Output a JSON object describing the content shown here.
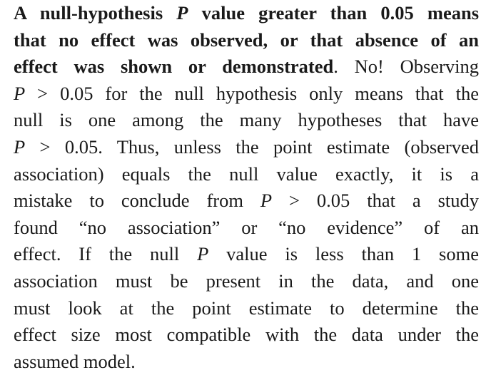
{
  "paragraph": {
    "lines": [
      [
        {
          "t": "A null-hypothesis ",
          "b": true
        },
        {
          "t": "P",
          "b": true,
          "i": true
        },
        {
          "t": " value greater than 0.05 means",
          "b": true
        }
      ],
      [
        {
          "t": "that no effect was observed, or that absence of an",
          "b": true
        }
      ],
      [
        {
          "t": "effect was shown or demonstrated",
          "b": true
        },
        {
          "t": ". No! Observing"
        }
      ],
      [
        {
          "t": "P",
          "i": true
        },
        {
          "t": " > 0.05 for the null hypothesis only means that the"
        }
      ],
      [
        {
          "t": "null is one among the many hypotheses that have"
        }
      ],
      [
        {
          "t": "P",
          "i": true
        },
        {
          "t": " > 0.05. Thus, unless the point estimate (observed"
        }
      ],
      [
        {
          "t": "association) equals the null value exactly, it is a"
        }
      ],
      [
        {
          "t": "mistake to conclude from "
        },
        {
          "t": "P",
          "i": true
        },
        {
          "t": " > 0.05 that a study"
        }
      ],
      [
        {
          "t": "found “no association” or “no evidence” of an"
        }
      ],
      [
        {
          "t": "effect. If the null "
        },
        {
          "t": "P",
          "i": true
        },
        {
          "t": " value is less than 1 some"
        }
      ],
      [
        {
          "t": "association must be present in the data, and one"
        }
      ],
      [
        {
          "t": "must look at the point estimate to determine the"
        }
      ],
      [
        {
          "t": "effect size most compatible with the data under the"
        }
      ],
      [
        {
          "t": "assumed model."
        }
      ]
    ]
  }
}
